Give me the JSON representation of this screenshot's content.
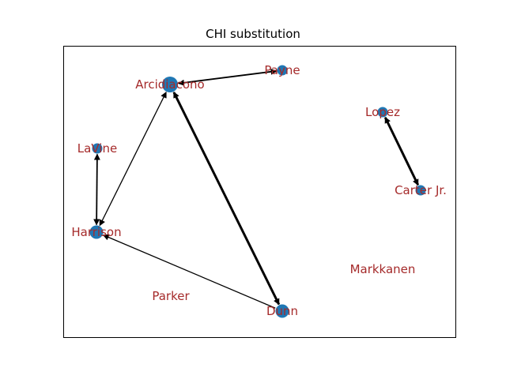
{
  "title": "CHI substitution",
  "colors": {
    "node": "#1f77b4",
    "label": "#a52a2a",
    "edge": "#000000",
    "frame": "#000000"
  },
  "nodes": [
    {
      "id": "arcidiacono",
      "label": "Arcidiacono",
      "size": "large",
      "has_marker": true
    },
    {
      "id": "payne",
      "label": "Payne",
      "size": "small",
      "has_marker": true
    },
    {
      "id": "lopez",
      "label": "Lopez",
      "size": "small",
      "has_marker": true
    },
    {
      "id": "lavine",
      "label": "LaVine",
      "size": "small",
      "has_marker": true
    },
    {
      "id": "carter",
      "label": "Carter Jr.",
      "size": "small",
      "has_marker": true
    },
    {
      "id": "harrison",
      "label": "Harrison",
      "size": "medium",
      "has_marker": true
    },
    {
      "id": "markkanen",
      "label": "Markkanen",
      "size": "none",
      "has_marker": false
    },
    {
      "id": "parker",
      "label": "Parker",
      "size": "none",
      "has_marker": false
    },
    {
      "id": "dunn",
      "label": "Dunn",
      "size": "medium",
      "has_marker": true
    }
  ],
  "edges": [
    {
      "source": "arcidiacono",
      "target": "payne",
      "bidirectional": true,
      "weight": "medium"
    },
    {
      "source": "arcidiacono",
      "target": "harrison",
      "bidirectional": true,
      "weight": "thin"
    },
    {
      "source": "arcidiacono",
      "target": "dunn",
      "bidirectional": true,
      "weight": "thick"
    },
    {
      "source": "lavine",
      "target": "harrison",
      "bidirectional": true,
      "weight": "medium"
    },
    {
      "source": "dunn",
      "target": "harrison",
      "bidirectional": false,
      "weight": "thin"
    },
    {
      "source": "lopez",
      "target": "carter",
      "bidirectional": true,
      "weight": "thick"
    }
  ]
}
